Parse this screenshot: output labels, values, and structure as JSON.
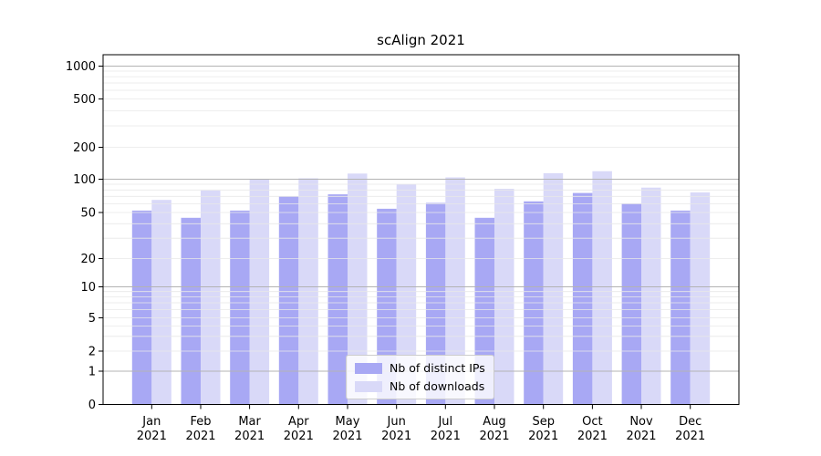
{
  "chart_data": {
    "type": "bar",
    "title": "scAlign 2021",
    "categories": [
      "Jan",
      "Feb",
      "Mar",
      "Apr",
      "May",
      "Jun",
      "Jul",
      "Aug",
      "Sep",
      "Oct",
      "Nov",
      "Dec"
    ],
    "category_year": "2021",
    "series": [
      {
        "name": "Nb of distinct IPs",
        "color": "#a8a8f4",
        "values": [
          52,
          45,
          52,
          70,
          73,
          54,
          61,
          45,
          63,
          75,
          60,
          52
        ]
      },
      {
        "name": "Nb of downloads",
        "color": "#d9d9f8",
        "values": [
          65,
          79,
          100,
          102,
          113,
          90,
          104,
          82,
          114,
          119,
          84,
          76
        ]
      }
    ],
    "xlabel": "",
    "ylabel": "",
    "yscale": "symlog",
    "yticks": [
      0,
      1,
      2,
      5,
      10,
      20,
      50,
      100,
      200,
      500,
      1000
    ],
    "ylim": [
      0,
      1300
    ],
    "grid": "both",
    "legend_position": "lower center"
  },
  "colors": {
    "major_grid": "#b3b3b3",
    "minor_grid": "#e8e8e8",
    "axis": "#000000",
    "text": "#000000",
    "legend_border": "#cccccc"
  }
}
